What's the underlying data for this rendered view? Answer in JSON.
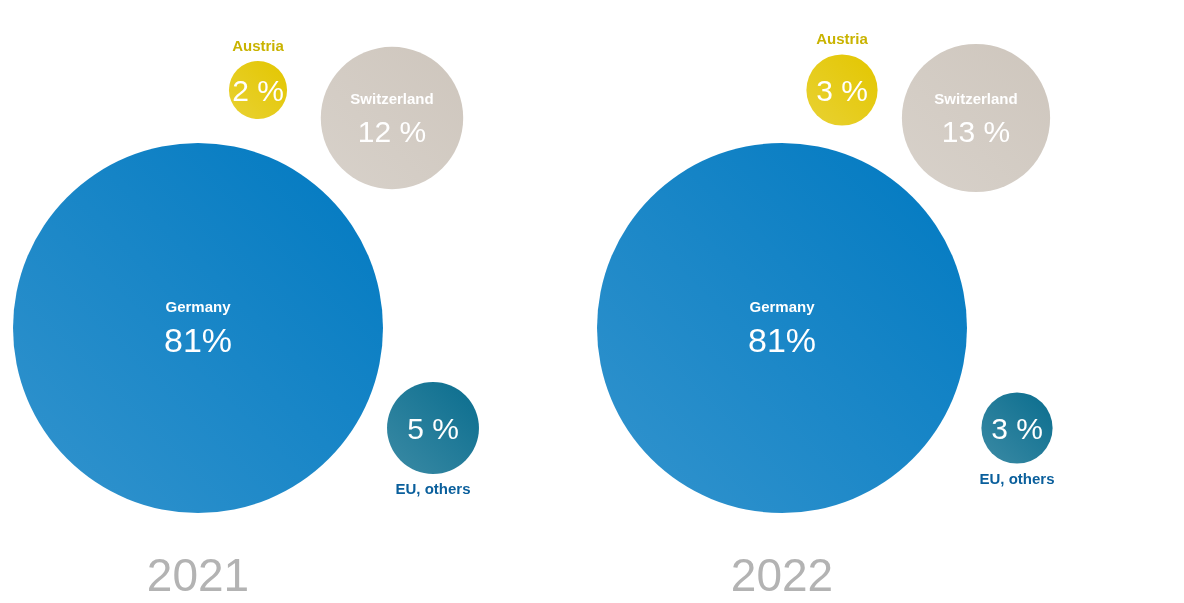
{
  "chart_data": [
    {
      "type": "other",
      "title": "2021",
      "categories": [
        "Germany",
        "Switzerland",
        "Austria",
        "EU, others"
      ],
      "values": [
        81,
        12,
        2,
        5
      ],
      "value_labels": [
        "81%",
        "12 %",
        "2 %",
        "5 %"
      ],
      "colors": [
        "#0079c1",
        "#cec6bd",
        "#e3c600",
        "#0a6d8e"
      ]
    },
    {
      "type": "other",
      "title": "2022",
      "categories": [
        "Germany",
        "Switzerland",
        "Austria",
        "EU, others"
      ],
      "values": [
        81,
        13,
        3,
        3
      ],
      "value_labels": [
        "81%",
        "13 %",
        "3 %",
        "3 %"
      ],
      "colors": [
        "#0079c1",
        "#cec6bd",
        "#e3c600",
        "#0a6d8e"
      ]
    }
  ]
}
